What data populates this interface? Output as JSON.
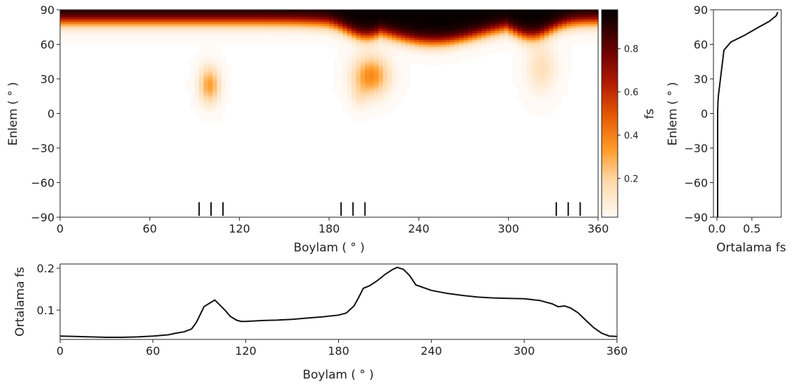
{
  "chart_data": [
    {
      "id": "map",
      "type": "heatmap",
      "xlabel": "Boylam ( ° )",
      "ylabel": "Enlem ( ° )",
      "xlim": [
        0,
        360
      ],
      "ylim": [
        -90,
        90
      ],
      "xticks": [
        0,
        60,
        120,
        180,
        240,
        300,
        360
      ],
      "yticks": [
        -90,
        -60,
        -30,
        0,
        30,
        60,
        90
      ],
      "colormap": "gist_heat_r",
      "colorbar": {
        "label": "fs",
        "range": [
          0.02,
          0.98
        ],
        "ticks": [
          0.2,
          0.4,
          0.6,
          0.8
        ],
        "tick_labels": [
          "0.2",
          "0.4",
          "0.6",
          "0.8"
        ]
      },
      "polar_cap": {
        "baseline_edge_lat": 80,
        "features": [
          {
            "lon": 250,
            "width": 45,
            "edge_lat": 62
          },
          {
            "lon": 205,
            "width": 18,
            "edge_lat": 67
          },
          {
            "lon": 315,
            "width": 18,
            "edge_lat": 67
          }
        ]
      },
      "blobs": [
        {
          "lon": 100,
          "lat": 25,
          "lon_width": 7,
          "lat_width": 16,
          "fs": 0.33
        },
        {
          "lon": 208,
          "lat": 33,
          "lon_width": 12,
          "lat_width": 17,
          "fs": 0.38
        },
        {
          "lon": 200,
          "lat": 15,
          "lon_width": 6,
          "lat_width": 12,
          "fs": 0.08
        },
        {
          "lon": 322,
          "lat": 40,
          "lon_width": 10,
          "lat_width": 22,
          "fs": 0.15
        }
      ],
      "markers": [
        {
          "lon": 93,
          "lat_range": [
            -90,
            -77
          ]
        },
        {
          "lon": 101,
          "lat_range": [
            -90,
            -77
          ]
        },
        {
          "lon": 109,
          "lat_range": [
            -90,
            -77
          ]
        },
        {
          "lon": 188,
          "lat_range": [
            -90,
            -77
          ]
        },
        {
          "lon": 196,
          "lat_range": [
            -90,
            -77
          ]
        },
        {
          "lon": 204,
          "lat_range": [
            -90,
            -77
          ]
        },
        {
          "lon": 332,
          "lat_range": [
            -90,
            -77
          ]
        },
        {
          "lon": 340,
          "lat_range": [
            -90,
            -77
          ]
        },
        {
          "lon": 348,
          "lat_range": [
            -90,
            -77
          ]
        }
      ]
    },
    {
      "id": "lat_profile",
      "type": "line",
      "xlabel": "Ortalama fs",
      "ylabel": "Enlem ( ° )",
      "xlim": [
        -0.05,
        0.92
      ],
      "ylim": [
        -90,
        90
      ],
      "xticks": [
        0.0,
        0.5
      ],
      "xtick_labels": [
        "0.0",
        "0.5"
      ],
      "yticks": [
        -90,
        -60,
        -30,
        0,
        30,
        60,
        90
      ],
      "x": [
        0.01,
        0.01,
        0.01,
        0.01,
        0.01,
        0.012,
        0.015,
        0.02,
        0.03,
        0.04,
        0.05,
        0.06,
        0.08,
        0.1,
        0.2,
        0.4,
        0.6,
        0.75,
        0.85,
        0.87
      ],
      "y": [
        -90,
        -60,
        -30,
        -10,
        0,
        5,
        10,
        15,
        20,
        25,
        30,
        35,
        45,
        55,
        62,
        68,
        75,
        80,
        85,
        88
      ]
    },
    {
      "id": "lon_profile",
      "type": "line",
      "xlabel": "Boylam ( ° )",
      "ylabel": "Ortalama fs",
      "xlim": [
        0,
        360
      ],
      "ylim": [
        0.03,
        0.21
      ],
      "xticks": [
        0,
        60,
        120,
        180,
        240,
        300,
        360
      ],
      "yticks": [
        0.1,
        0.2
      ],
      "ytick_labels": [
        "0.1",
        "0.2"
      ],
      "x": [
        0,
        10,
        20,
        30,
        40,
        50,
        60,
        70,
        75,
        80,
        85,
        88,
        90,
        93,
        96,
        100,
        103,
        107,
        110,
        114,
        117,
        120,
        130,
        140,
        150,
        160,
        170,
        180,
        185,
        190,
        193,
        196,
        200,
        205,
        210,
        215,
        218,
        222,
        226,
        230,
        240,
        250,
        260,
        270,
        280,
        290,
        300,
        310,
        318,
        322,
        326,
        330,
        335,
        340,
        345,
        350,
        355,
        360
      ],
      "y": [
        0.038,
        0.037,
        0.036,
        0.035,
        0.035,
        0.036,
        0.038,
        0.041,
        0.045,
        0.048,
        0.055,
        0.07,
        0.085,
        0.108,
        0.115,
        0.124,
        0.113,
        0.098,
        0.085,
        0.076,
        0.073,
        0.073,
        0.075,
        0.076,
        0.078,
        0.081,
        0.084,
        0.088,
        0.093,
        0.11,
        0.13,
        0.152,
        0.158,
        0.17,
        0.185,
        0.197,
        0.202,
        0.197,
        0.182,
        0.16,
        0.147,
        0.14,
        0.135,
        0.131,
        0.129,
        0.128,
        0.127,
        0.123,
        0.115,
        0.108,
        0.11,
        0.105,
        0.093,
        0.075,
        0.058,
        0.045,
        0.038,
        0.037
      ]
    }
  ]
}
